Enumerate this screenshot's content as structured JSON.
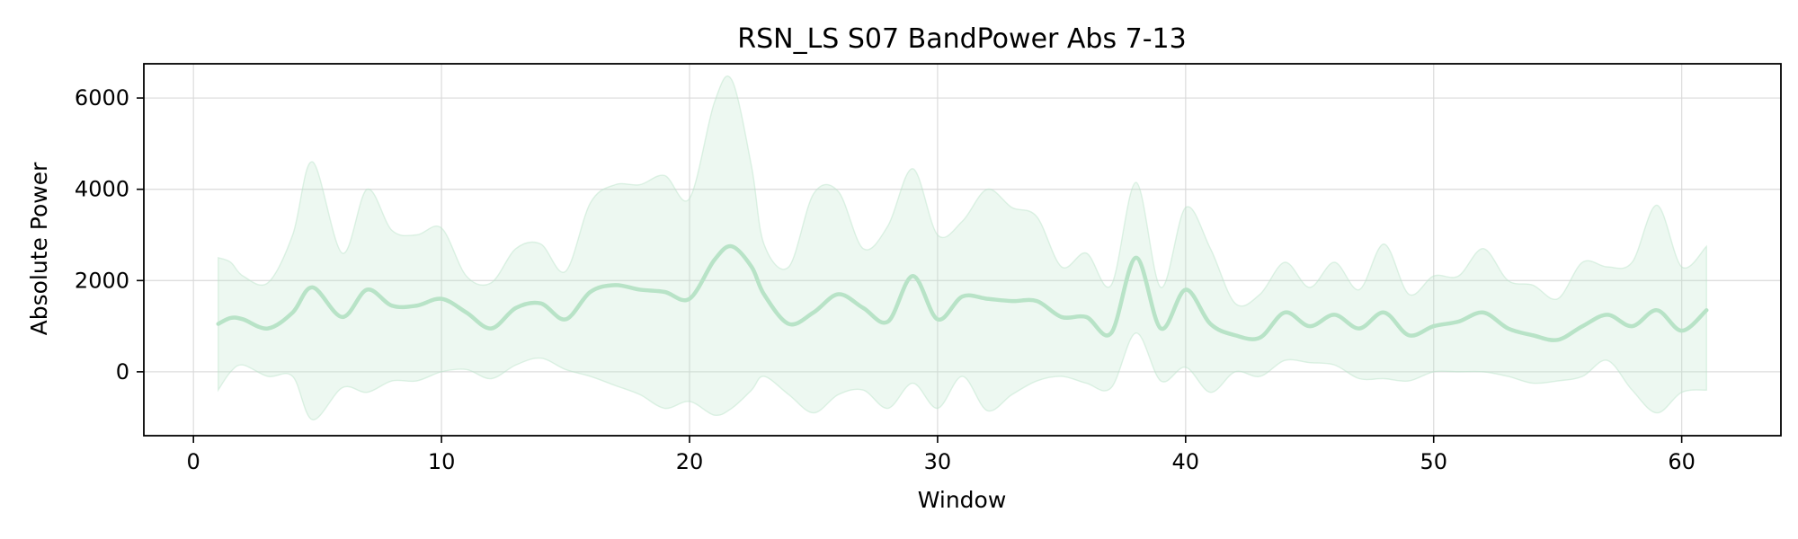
{
  "chart_data": {
    "type": "line",
    "title": "RSN_LS S07 BandPower Abs 7-13",
    "xlabel": "Window",
    "ylabel": "Absolute Power",
    "xlim": [
      -2,
      64
    ],
    "ylim": [
      -1400,
      6750
    ],
    "x_ticks": [
      0,
      10,
      20,
      30,
      40,
      50,
      60
    ],
    "y_ticks": [
      0,
      2000,
      4000,
      6000
    ],
    "grid": true,
    "colors": {
      "series": "#b8e3c7"
    },
    "series": [
      {
        "x": [
          1,
          1.5,
          2,
          3,
          4,
          4.8,
          6,
          7,
          8,
          9,
          10,
          11,
          12,
          13,
          14,
          15,
          16,
          17,
          18,
          19,
          20,
          21,
          21.7,
          22.5,
          23,
          24,
          25,
          26,
          27,
          28,
          29,
          30,
          31,
          32,
          33,
          34,
          35,
          36,
          37,
          38,
          39,
          40,
          41,
          42,
          43,
          44,
          45,
          46,
          47,
          48,
          49,
          50,
          51,
          52,
          53,
          54,
          55,
          56,
          57,
          58,
          59,
          60,
          61
        ],
        "mean": [
          1050,
          1180,
          1150,
          950,
          1300,
          1850,
          1200,
          1800,
          1450,
          1450,
          1600,
          1300,
          950,
          1400,
          1500,
          1150,
          1750,
          1900,
          1800,
          1750,
          1600,
          2450,
          2750,
          2300,
          1700,
          1050,
          1300,
          1700,
          1400,
          1100,
          2100,
          1150,
          1650,
          1600,
          1550,
          1550,
          1200,
          1200,
          850,
          2500,
          950,
          1800,
          1050,
          800,
          750,
          1300,
          1000,
          1250,
          950,
          1300,
          800,
          1000,
          1100,
          1300,
          950,
          800,
          700,
          1000,
          1250,
          1000,
          1350,
          900,
          1350
        ],
        "upper": [
          2500,
          2400,
          2100,
          1950,
          3000,
          4600,
          2600,
          4000,
          3100,
          3000,
          3150,
          2100,
          1950,
          2700,
          2800,
          2200,
          3700,
          4100,
          4100,
          4300,
          3800,
          5900,
          6400,
          4500,
          2800,
          2300,
          3900,
          3950,
          2700,
          3200,
          4450,
          3000,
          3300,
          4000,
          3600,
          3400,
          2300,
          2600,
          1900,
          4150,
          1850,
          3600,
          2700,
          1500,
          1700,
          2400,
          1850,
          2400,
          1800,
          2800,
          1700,
          2100,
          2100,
          2700,
          2000,
          1900,
          1600,
          2400,
          2300,
          2400,
          3650,
          2300,
          2750
        ],
        "lower": [
          -400,
          0,
          150,
          -100,
          -100,
          -1050,
          -350,
          -450,
          -200,
          -200,
          0,
          50,
          -150,
          150,
          300,
          50,
          -100,
          -300,
          -500,
          -800,
          -650,
          -950,
          -800,
          -400,
          -100,
          -500,
          -900,
          -500,
          -400,
          -800,
          -250,
          -800,
          -100,
          -850,
          -500,
          -200,
          -100,
          -250,
          -350,
          850,
          -200,
          100,
          -450,
          0,
          -100,
          250,
          200,
          150,
          -150,
          -150,
          -200,
          0,
          0,
          0,
          -100,
          -250,
          -200,
          -100,
          250,
          -400,
          -900,
          -450,
          -400
        ]
      }
    ]
  }
}
